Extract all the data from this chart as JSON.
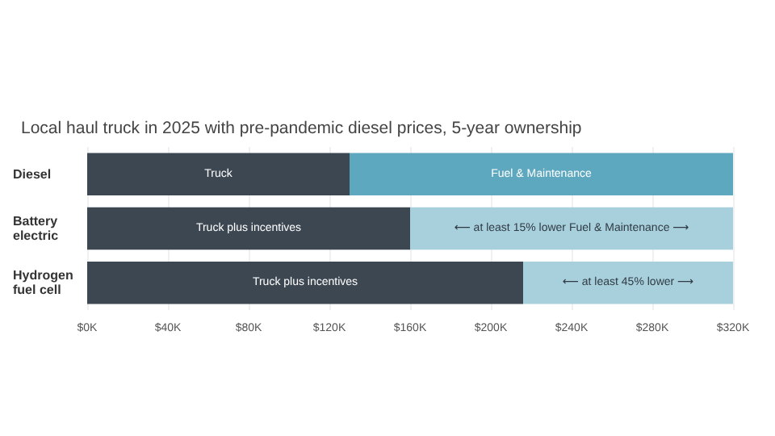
{
  "chart_data": {
    "type": "bar",
    "orientation": "horizontal",
    "stacked": true,
    "title": "Local haul truck in 2025 with pre-pandemic diesel prices, 5-year ownership",
    "categories": [
      "Diesel",
      "Battery electric",
      "Hydrogen fuel cell"
    ],
    "series": [
      {
        "color": "#3d4752",
        "values": [
          130,
          160,
          216
        ],
        "value_labels": [
          "Truck",
          "Truck plus incentives",
          "Truck plus incentives"
        ]
      },
      {
        "colors": [
          "#5ea8bf",
          "#a8d0dc",
          "#a8d0dc"
        ],
        "values": [
          190,
          160,
          104
        ],
        "value_labels": [
          "Fuel & Maintenance",
          "⟵ at least 15% lower Fuel & Maintenance ⟶",
          "⟵ at least 45% lower ⟶"
        ]
      }
    ],
    "xlim": [
      0,
      320
    ],
    "xticks": [
      {
        "value": 0,
        "label": "$0K"
      },
      {
        "value": 40,
        "label": "$40K"
      },
      {
        "value": 80,
        "label": "$80K"
      },
      {
        "value": 120,
        "label": "$120K"
      },
      {
        "value": 160,
        "label": "$160K"
      },
      {
        "value": 200,
        "label": "$200K"
      },
      {
        "value": 240,
        "label": "$240K"
      },
      {
        "value": 280,
        "label": "$280K"
      },
      {
        "value": 320,
        "label": "$320K"
      }
    ],
    "grid": "x"
  }
}
